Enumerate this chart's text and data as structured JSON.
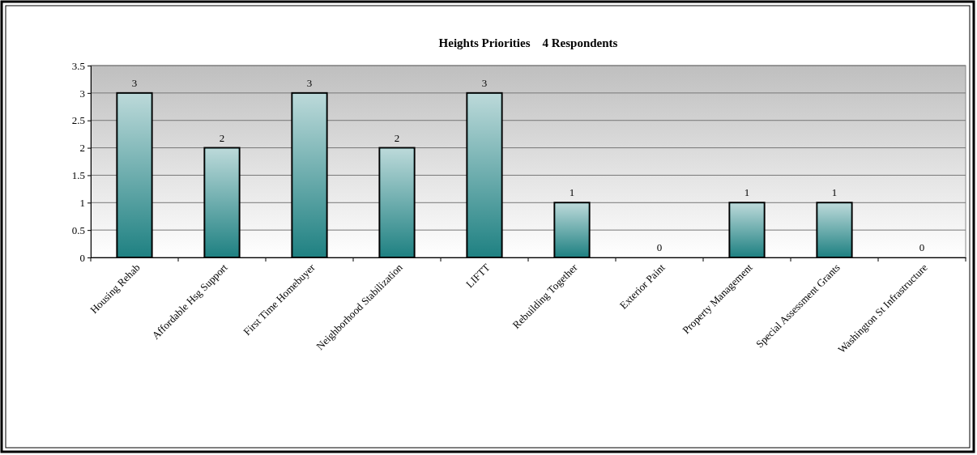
{
  "chart_data": {
    "type": "bar",
    "title": "Heights Priorities    4 Respondents",
    "categories": [
      "Housing Rehab",
      "Affordable Hsg Support",
      "First Time Homebuyer",
      "Neighborhood Stabilization",
      "LIFTT",
      "Rebuilding Together",
      "Exterior Paint",
      "Property Management",
      "Special Assessment Grants",
      "Washington St Infrastructure"
    ],
    "values": [
      3,
      2,
      3,
      2,
      3,
      1,
      0,
      1,
      1,
      0
    ],
    "color": "#1f8182",
    "ylim": [
      0,
      3.5
    ],
    "yticks": [
      0,
      0.5,
      1,
      1.5,
      2,
      2.5,
      3,
      3.5
    ],
    "grid": "y",
    "data_labels": true
  }
}
